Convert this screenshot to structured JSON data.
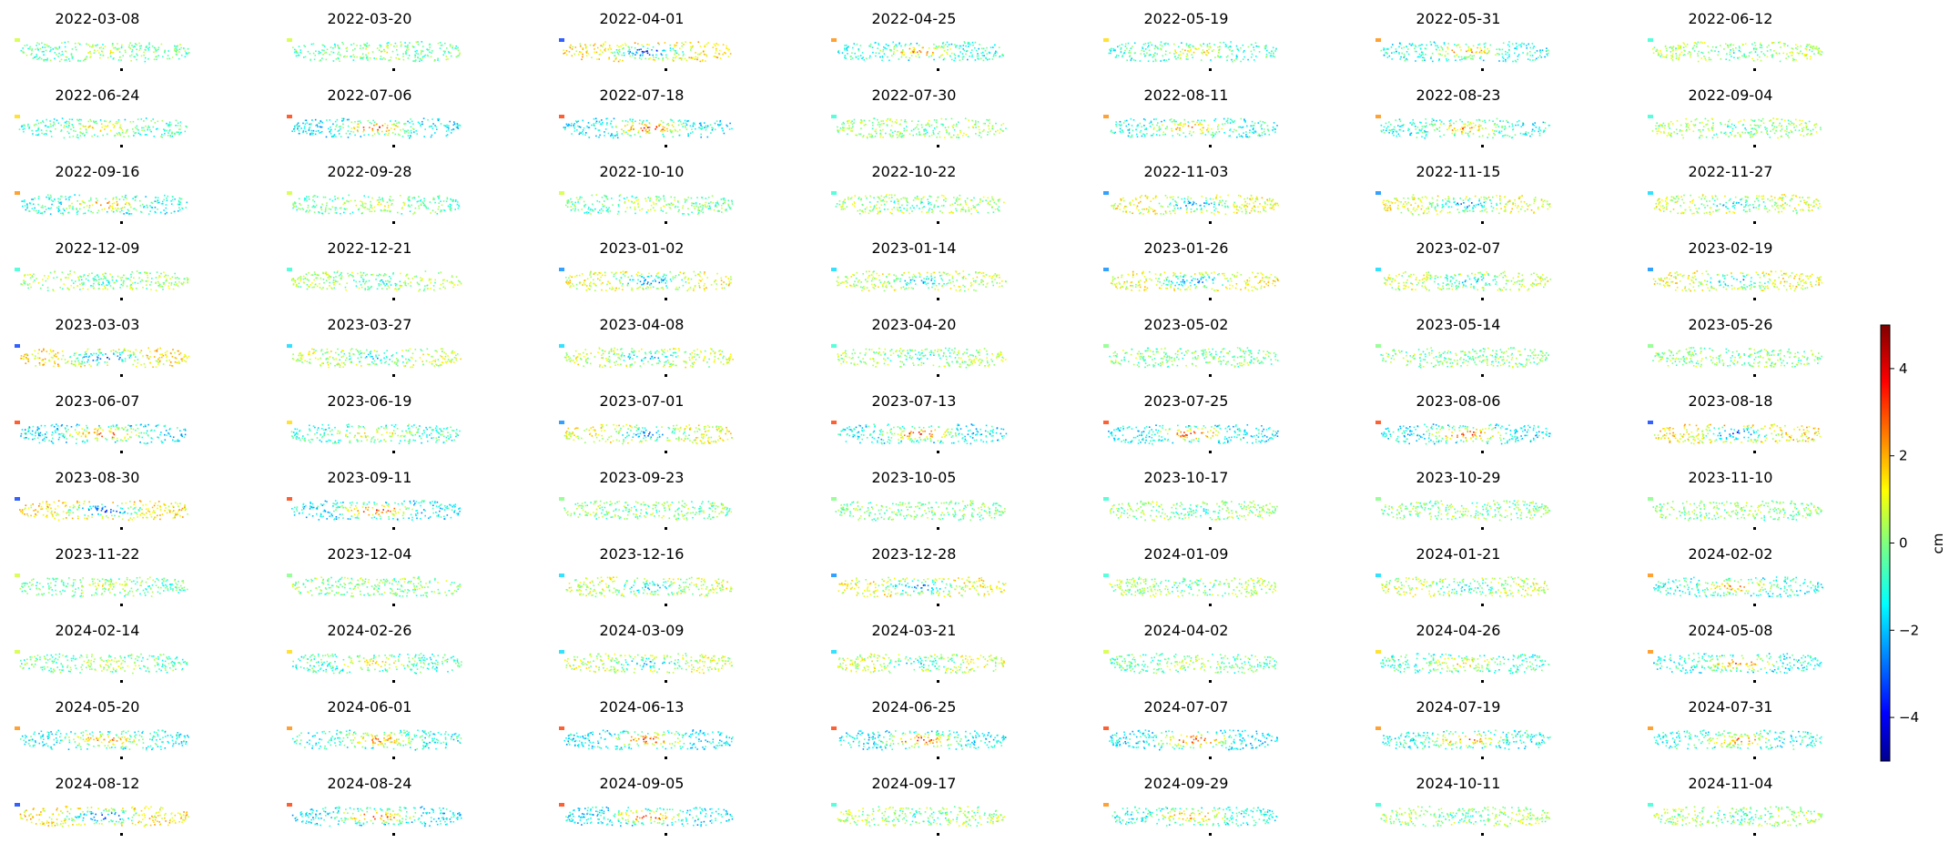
{
  "chart_data": {
    "type": "scatter",
    "dates": [
      "2022-03-08",
      "2022-03-20",
      "2022-04-01",
      "2022-04-25",
      "2022-05-19",
      "2022-05-31",
      "2022-06-12",
      "2022-06-24",
      "2022-07-06",
      "2022-07-18",
      "2022-07-30",
      "2022-08-11",
      "2022-08-23",
      "2022-09-04",
      "2022-09-16",
      "2022-09-28",
      "2022-10-10",
      "2022-10-22",
      "2022-11-03",
      "2022-11-15",
      "2022-11-27",
      "2022-12-09",
      "2022-12-21",
      "2023-01-02",
      "2023-01-14",
      "2023-01-26",
      "2023-02-07",
      "2023-02-19",
      "2023-03-03",
      "2023-03-27",
      "2023-04-08",
      "2023-04-20",
      "2023-05-02",
      "2023-05-14",
      "2023-05-26",
      "2023-06-07",
      "2023-06-19",
      "2023-07-01",
      "2023-07-13",
      "2023-07-25",
      "2023-08-06",
      "2023-08-18",
      "2023-08-30",
      "2023-09-11",
      "2023-09-23",
      "2023-10-05",
      "2023-10-17",
      "2023-10-29",
      "2023-11-10",
      "2023-11-22",
      "2023-12-04",
      "2023-12-16",
      "2023-12-28",
      "2024-01-09",
      "2024-01-21",
      "2024-02-02",
      "2024-02-14",
      "2024-02-26",
      "2024-03-09",
      "2024-03-21",
      "2024-04-02",
      "2024-04-26",
      "2024-05-08",
      "2024-05-20",
      "2024-06-01",
      "2024-06-13",
      "2024-06-25",
      "2024-07-07",
      "2024-07-19",
      "2024-07-31",
      "2024-08-12",
      "2024-08-24",
      "2024-09-05",
      "2024-09-17",
      "2024-09-29",
      "2024-10-11",
      "2024-11-04"
    ],
    "center_displacement_cm": [
      1,
      1,
      -4,
      3,
      2,
      3,
      -1,
      2,
      4,
      4,
      -1,
      3,
      3,
      -1,
      3,
      1,
      1,
      -1,
      -3,
      -3,
      -2,
      -1,
      -1,
      -3,
      -2,
      -3,
      -2,
      -3,
      -4,
      -2,
      -2,
      -1,
      0,
      0,
      0,
      4,
      2,
      -3,
      4,
      4,
      4,
      -4,
      -4,
      4,
      0,
      0,
      -1,
      0,
      0,
      1,
      0,
      -2,
      -3,
      -1,
      -2,
      3,
      1,
      2,
      -2,
      -2,
      1,
      2,
      3,
      3,
      3,
      4,
      4,
      4,
      3,
      3,
      -4,
      4,
      4,
      -1,
      3,
      -1,
      -1
    ],
    "colorbar": {
      "label": "cm",
      "colormap": "jet",
      "range": [
        -5,
        5
      ],
      "ticks": [
        -4,
        -2,
        0,
        2,
        4
      ],
      "tick_labels": [
        "−4",
        "−2",
        "0",
        "2",
        "4"
      ]
    },
    "grid": false,
    "axes_visible": false
  }
}
